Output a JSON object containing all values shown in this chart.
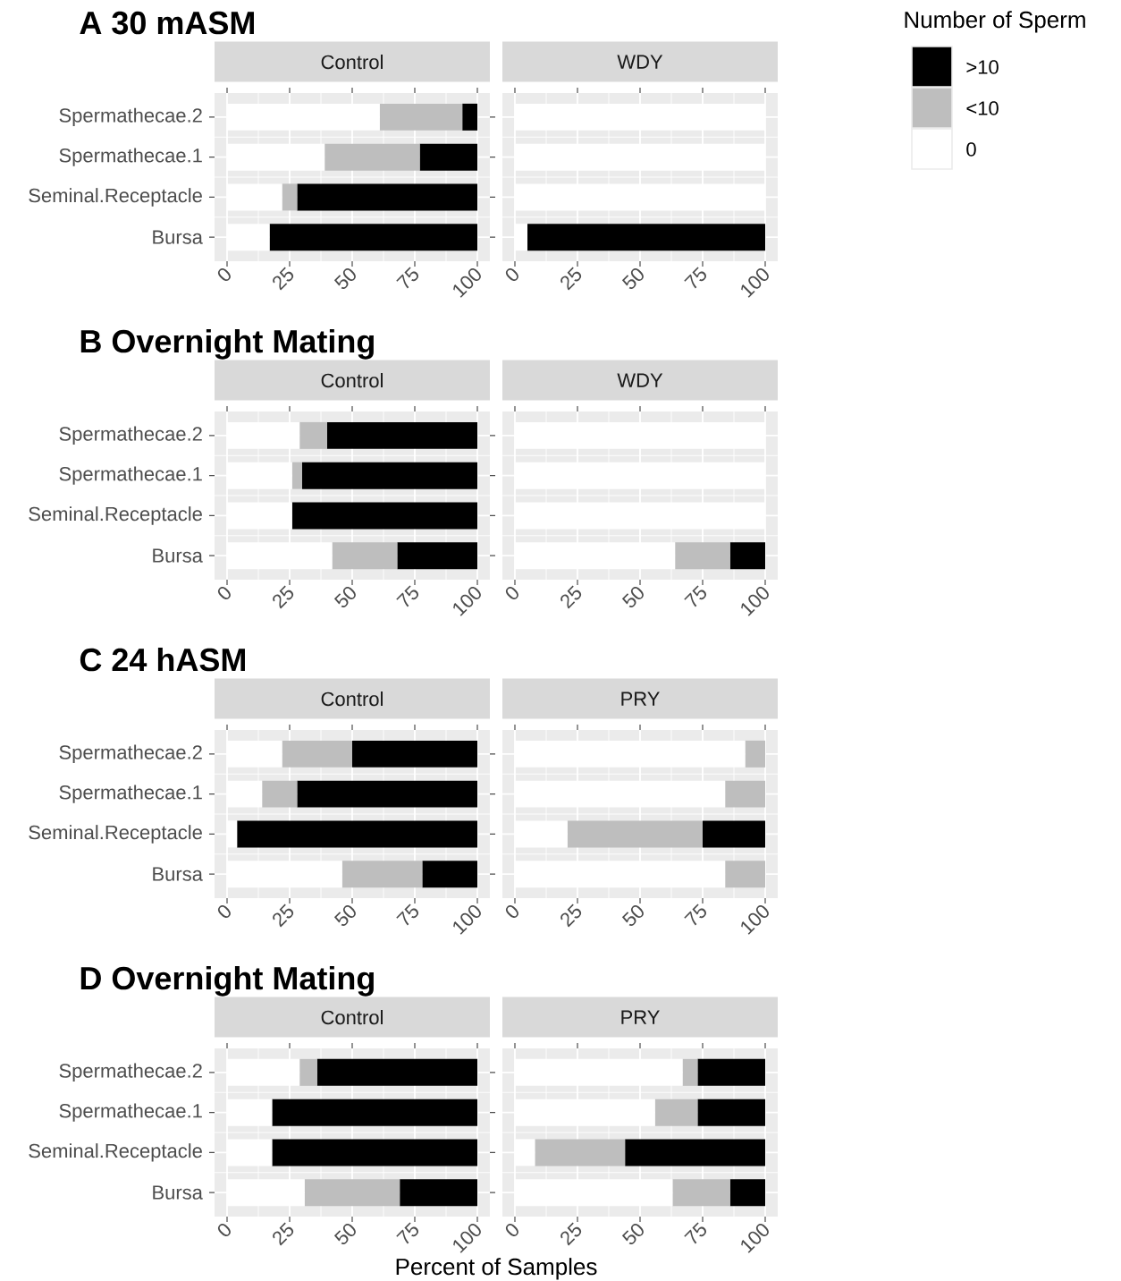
{
  "chart_data": [
    {
      "type": "bar",
      "orientation": "horizontal",
      "stacked": true,
      "title": "A  30 mASM",
      "subtitle": "Control",
      "categories": [
        "Spermathecae.2",
        "Spermathecae.1",
        "Seminal.Receptacle",
        "Bursa"
      ],
      "series": [
        {
          "name": "0",
          "color": "#ffffff",
          "values": [
            61,
            39,
            22,
            17
          ]
        },
        {
          "name": "<10",
          "color": "#bebebe",
          "values": [
            33,
            38,
            6,
            0
          ]
        },
        {
          "name": ">10",
          "color": "#000000",
          "values": [
            6,
            23,
            72,
            83
          ]
        }
      ],
      "xlim": [
        -5,
        105
      ],
      "xticks": [
        0,
        25,
        50,
        75,
        100
      ],
      "grid": true,
      "legend": "right",
      "legend_title": "Number of Sperm"
    },
    {
      "type": "bar",
      "orientation": "horizontal",
      "stacked": true,
      "subtitle": "WDY",
      "categories": [
        null,
        null,
        null,
        null
      ],
      "series": [
        {
          "color": "#ffffff",
          "values": [
            100,
            100,
            100,
            5
          ]
        },
        {
          "color": "#bebebe",
          "values": [
            0,
            0,
            0,
            0
          ]
        },
        {
          "color": "#000000",
          "values": [
            0,
            0,
            0,
            95
          ]
        }
      ],
      "xlim": [
        -5,
        105
      ],
      "xticks": [
        0,
        25,
        50,
        75,
        100
      ],
      "grid": true,
      "tick_labels": "x"
    },
    {
      "type": "bar",
      "orientation": "horizontal",
      "stacked": true,
      "title": "B  Overnight Mating",
      "subtitle": "Control",
      "categories": [
        "Spermathecae.2",
        "Spermathecae.1",
        "Seminal.Receptacle",
        "Bursa"
      ],
      "series": [
        {
          "color": "#ffffff",
          "values": [
            29,
            26,
            26,
            42
          ]
        },
        {
          "color": "#bebebe",
          "values": [
            11,
            4,
            0,
            26
          ]
        },
        {
          "color": "#000000",
          "values": [
            60,
            70,
            74,
            32
          ]
        }
      ],
      "xlim": [
        -5,
        105
      ],
      "xticks": [
        0,
        25,
        50,
        75,
        100
      ],
      "grid": true
    },
    {
      "type": "bar",
      "orientation": "horizontal",
      "stacked": true,
      "subtitle": "WDY",
      "categories": [
        null,
        null,
        null,
        null
      ],
      "series": [
        {
          "color": "#ffffff",
          "values": [
            100,
            100,
            100,
            64
          ]
        },
        {
          "color": "#bebebe",
          "values": [
            0,
            0,
            0,
            22
          ]
        },
        {
          "color": "#000000",
          "values": [
            0,
            0,
            0,
            14
          ]
        }
      ],
      "xlim": [
        -5,
        105
      ],
      "xticks": [
        0,
        25,
        50,
        75,
        100
      ],
      "grid": true,
      "tick_labels": "x"
    },
    {
      "type": "bar",
      "orientation": "horizontal",
      "stacked": true,
      "title": "C  24 hASM",
      "subtitle": "Control",
      "categories": [
        "Spermathecae.2",
        "Spermathecae.1",
        "Seminal.Receptacle",
        "Bursa"
      ],
      "series": [
        {
          "color": "#ffffff",
          "values": [
            22,
            14,
            4,
            46
          ]
        },
        {
          "color": "#bebebe",
          "values": [
            28,
            14,
            0,
            32
          ]
        },
        {
          "color": "#000000",
          "values": [
            50,
            72,
            96,
            22
          ]
        }
      ],
      "xlim": [
        -5,
        105
      ],
      "xticks": [
        0,
        25,
        50,
        75,
        100
      ],
      "grid": true
    },
    {
      "type": "bar",
      "orientation": "horizontal",
      "stacked": true,
      "subtitle": "PRY",
      "categories": [
        null,
        null,
        null,
        null
      ],
      "series": [
        {
          "color": "#ffffff",
          "values": [
            92,
            84,
            21,
            84
          ]
        },
        {
          "color": "#bebebe",
          "values": [
            8,
            16,
            54,
            16
          ]
        },
        {
          "color": "#000000",
          "values": [
            0,
            0,
            25,
            0
          ]
        }
      ],
      "xlim": [
        -5,
        105
      ],
      "xticks": [
        0,
        25,
        50,
        75,
        100
      ],
      "grid": true,
      "tick_labels": "x"
    },
    {
      "type": "bar",
      "orientation": "horizontal",
      "stacked": true,
      "title": "D  Overnight Mating",
      "subtitle": "Control",
      "xlabel": "Percent of Samples",
      "categories": [
        "Spermathecae.2",
        "Spermathecae.1",
        "Seminal.Receptacle",
        "Bursa"
      ],
      "series": [
        {
          "color": "#ffffff",
          "values": [
            29,
            18,
            18,
            31
          ]
        },
        {
          "color": "#bebebe",
          "values": [
            7,
            0,
            0,
            38
          ]
        },
        {
          "color": "#000000",
          "values": [
            64,
            82,
            82,
            31
          ]
        }
      ],
      "xlim": [
        -5,
        105
      ],
      "xticks": [
        0,
        25,
        50,
        75,
        100
      ],
      "grid": true
    },
    {
      "type": "bar",
      "orientation": "horizontal",
      "stacked": true,
      "subtitle": "PRY",
      "categories": [
        null,
        null,
        null,
        null
      ],
      "series": [
        {
          "color": "#ffffff",
          "values": [
            67,
            56,
            8,
            63
          ]
        },
        {
          "color": "#bebebe",
          "values": [
            6,
            17,
            36,
            23
          ]
        },
        {
          "color": "#000000",
          "values": [
            27,
            27,
            56,
            14
          ]
        }
      ],
      "xlim": [
        -5,
        105
      ],
      "xticks": [
        0,
        25,
        50,
        75,
        100
      ],
      "grid": true,
      "tick_labels": "x"
    }
  ]
}
